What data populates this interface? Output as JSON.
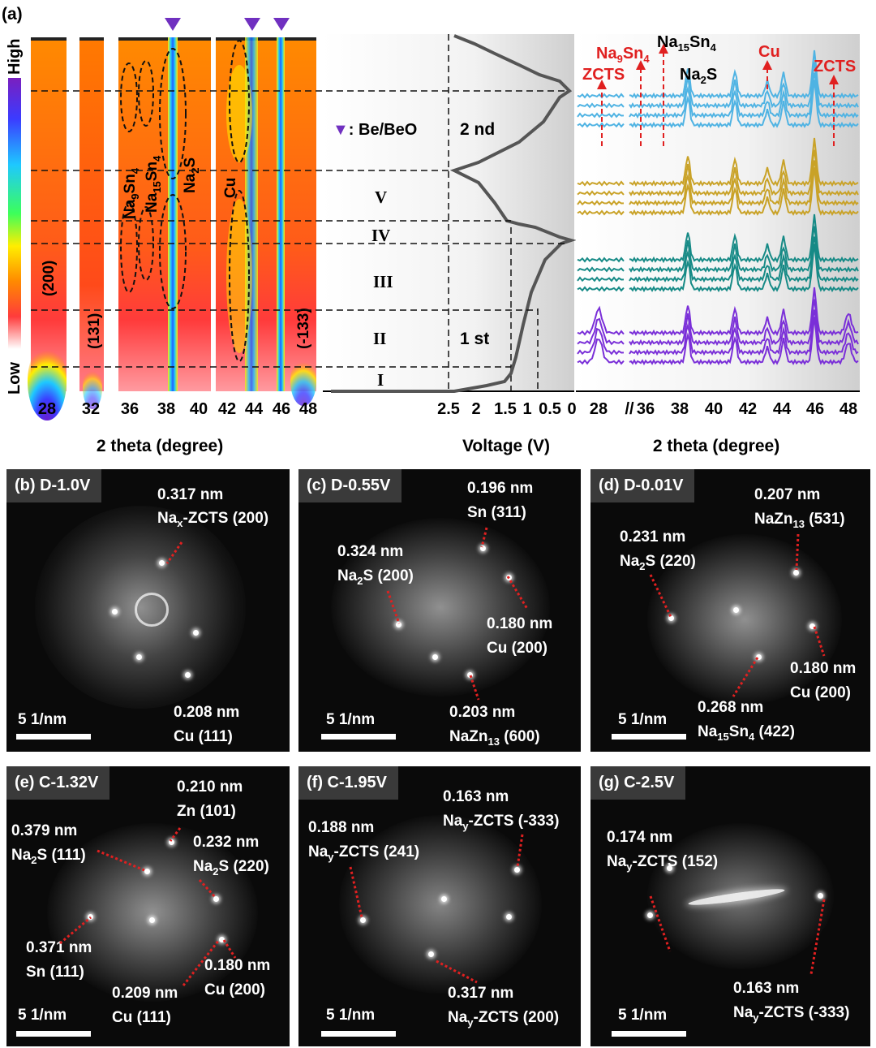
{
  "panel_a": {
    "label": "(a)",
    "colorbar": {
      "high": "High",
      "low": "Low"
    },
    "heatmap_x_ticks": [
      "28",
      "32",
      "36",
      "38",
      "40",
      "42",
      "44",
      "46",
      "48"
    ],
    "heatmap_peaks": [
      "(200)",
      "(131)",
      "Na9Sn4",
      "Na15Sn4",
      "Na2S",
      "Cu",
      "(-133)"
    ],
    "legend": "▼: Be/BeO",
    "cycle_labels": [
      "2 nd",
      "1 st"
    ],
    "stages": [
      "V",
      "IV",
      "III",
      "II",
      "I"
    ],
    "voltage_ticks": [
      "2.5",
      "2",
      "1.5",
      "1",
      "0.5",
      "0"
    ],
    "xrd_x_ticks": [
      "28",
      "36",
      "38",
      "40",
      "42",
      "44",
      "46",
      "48"
    ],
    "xrd_phase_labels": [
      "Na9Sn4",
      "Na15Sn4",
      "ZCTS",
      "Na2S",
      "Cu",
      "ZCTS"
    ],
    "axis_labels": {
      "heatmap": "2 theta (degree)",
      "voltage": "Voltage (V)",
      "xrd": "2 theta (degree)"
    },
    "colors": {
      "purple": "#7a2fd8",
      "blue": "#4fb3e3",
      "gold": "#c9a227",
      "teal": "#168a86",
      "red": "#e02020"
    }
  },
  "fft_panels": [
    {
      "tag": "(b) D-1.0V",
      "scale": "5 1/nm",
      "annotations": [
        "0.317 nm",
        "Nax-ZCTS (200)",
        "0.208 nm",
        "Cu (111)"
      ]
    },
    {
      "tag": "(c) D-0.55V",
      "scale": "5 1/nm",
      "annotations": [
        "0.196 nm",
        "Sn (311)",
        "0.324 nm",
        "Na2S (200)",
        "0.180 nm",
        "Cu (200)",
        "0.203 nm",
        "NaZn13 (600)"
      ]
    },
    {
      "tag": "(d) D-0.01V",
      "scale": "5 1/nm",
      "annotations": [
        "0.207 nm",
        "NaZn13 (531)",
        "0.231 nm",
        "Na2S (220)",
        "0.180 nm",
        "Cu (200)",
        "0.268 nm",
        "Na15Sn4 (422)"
      ]
    },
    {
      "tag": "(e) C-1.32V",
      "scale": "5 1/nm",
      "annotations": [
        "0.210 nm",
        "Zn (101)",
        "0.379 nm",
        "Na2S (111)",
        "0.232 nm",
        "Na2S (220)",
        "0.371 nm",
        "Sn (111)",
        "0.180 nm",
        "Cu (200)",
        "0.209 nm",
        "Cu (111)"
      ]
    },
    {
      "tag": "(f) C-1.95V",
      "scale": "5 1/nm",
      "annotations": [
        "0.163 nm",
        "Nay-ZCTS (-333)",
        "0.188 nm",
        "Nay-ZCTS (241)",
        "0.317 nm",
        "Nay-ZCTS (200)"
      ]
    },
    {
      "tag": "(g) C-2.5V",
      "scale": "5 1/nm",
      "annotations": [
        "0.174 nm",
        "Nay-ZCTS (152)",
        "0.163 nm",
        "Nay-ZCTS (-333)"
      ]
    }
  ]
}
